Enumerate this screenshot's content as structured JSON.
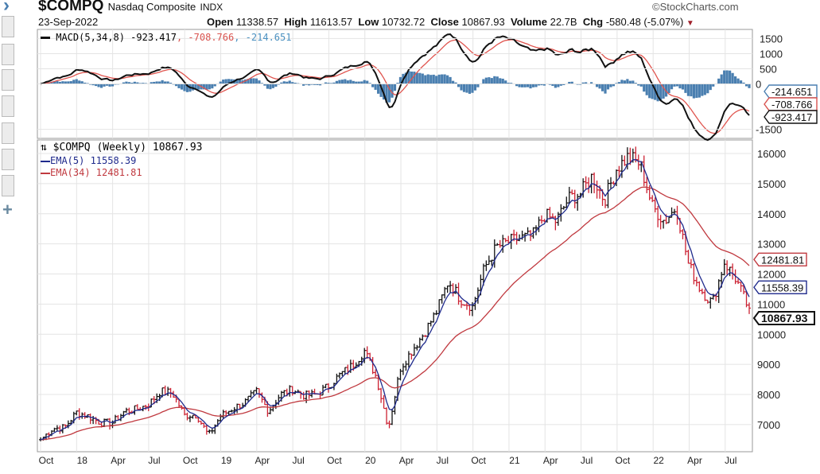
{
  "header": {
    "symbol": "$COMPQ",
    "name": "Nasdaq Composite",
    "exchange": "INDX",
    "date": "23-Sep-2022",
    "open_label": "Open",
    "open": "11338.57",
    "high_label": "High",
    "high": "11613.57",
    "low_label": "Low",
    "low": "10732.72",
    "close_label": "Close",
    "close": "10867.93",
    "volume_label": "Volume",
    "volume": "22.7B",
    "chg_label": "Chg",
    "chg": "-580.48 (-5.07%)",
    "brand": "©StockCharts.com"
  },
  "sidebar": {
    "plus": "+",
    "chevron": "›"
  },
  "chart_data": [
    {
      "type": "line",
      "title": "MACD(5,34,8)",
      "legend": "MACD(5,34,8)",
      "values_text": [
        "-923.417",
        ", -708.766",
        ", -214.651"
      ],
      "yticks": [
        1500,
        1000,
        500,
        0,
        -1500
      ],
      "ylim": [
        -1800,
        1800
      ],
      "tags": [
        {
          "text": "-214.651",
          "value": -214.651,
          "color": "#4a7fb0"
        },
        {
          "text": "-708.766",
          "value": -708.766,
          "color": "#d9534f"
        },
        {
          "text": "-923.417",
          "value": -923.417,
          "color": "#111111"
        }
      ],
      "series": [
        {
          "name": "MACD",
          "color": "#111111"
        },
        {
          "name": "Signal",
          "color": "#e0554f"
        },
        {
          "name": "Histogram",
          "color": "#4a7fb0"
        }
      ]
    },
    {
      "type": "ohlc",
      "title": "$COMPQ (Weekly) 10867.93",
      "icon": "⇅",
      "legend": [
        {
          "text": "EMA(5) 11558.39",
          "color": "#1f2a8c"
        },
        {
          "text": "EMA(34) 12481.81",
          "color": "#c0393f"
        }
      ],
      "yticks": [
        16000,
        15000,
        14000,
        13000,
        12000,
        11000,
        10000,
        9000,
        8000,
        7000
      ],
      "ylim": [
        6100,
        16450
      ],
      "xticks": [
        "Oct",
        "18",
        "Apr",
        "Jul",
        "Oct",
        "19",
        "Apr",
        "Jul",
        "Oct",
        "20",
        "Apr",
        "Jul",
        "Oct",
        "21",
        "Apr",
        "Jul",
        "Oct",
        "22",
        "Apr",
        "Jul"
      ],
      "tags": [
        {
          "text": "12481.81",
          "value": 12481.81,
          "color": "#c0393f"
        },
        {
          "text": "11558.39",
          "value": 11558.39,
          "color": "#1f2a8c"
        },
        {
          "text": "10867.93",
          "value": 10867.93,
          "color": "#111111",
          "bold": true
        }
      ],
      "monthly_close_start": "Oct 2017",
      "monthly_close": [
        6500,
        6874,
        6903,
        7411,
        7273,
        7063,
        7066,
        7442,
        7510,
        7672,
        8110,
        8046,
        7306,
        7331,
        6635,
        7282,
        7533,
        7729,
        8095,
        7453,
        8006,
        8175,
        7963,
        7999,
        8292,
        8665,
        8973,
        9450,
        8567,
        6900,
        8890,
        9490,
        10058,
        10745,
        11775,
        11168,
        10911,
        12199,
        12888,
        13070,
        13192,
        13247,
        13962,
        13748,
        14504,
        14673,
        15259,
        14448,
        15498,
        15900,
        15645,
        14240,
        13751,
        14220,
        12335,
        11500,
        11029,
        12391,
        11816,
        10868
      ],
      "up_color": "#111111",
      "down_color": "#cc2233"
    }
  ]
}
